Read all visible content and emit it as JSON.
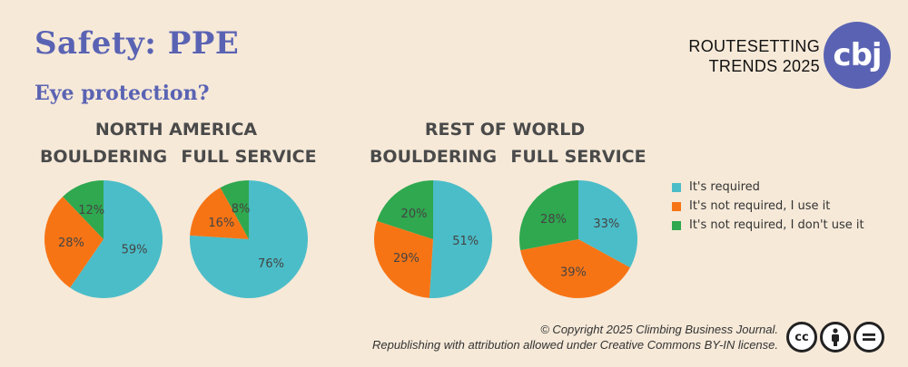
{
  "title": "Safety: PPE",
  "subtitle": "Eye protection?",
  "brand": {
    "line1": "ROUTESETTING",
    "line2": "TRENDS 2025",
    "logo_text": "cbj"
  },
  "regions": [
    "NORTH AMERICA",
    "REST OF WORLD"
  ],
  "copyright": {
    "line1": "© Copyright 2025 Climbing Business Journal.",
    "line2": "Republishing with attribution allowed under Creative Commons BY-IN license."
  },
  "license_icons": [
    "creative-commons-icon",
    "attribution-icon",
    "no-derivatives-icon"
  ],
  "chart_data": {
    "type": "pie",
    "labels": [
      "It's required",
      "It's not required, I use it",
      "It's not required, I don't use it"
    ],
    "colors": [
      "#4bbdc8",
      "#f77415",
      "#2fa84f"
    ],
    "legend_position": "right",
    "charts": [
      {
        "region": "NORTH AMERICA",
        "title": "BOULDERING",
        "values": [
          59,
          28,
          12
        ]
      },
      {
        "region": "NORTH AMERICA",
        "title": "FULL SERVICE",
        "values": [
          76,
          16,
          8
        ]
      },
      {
        "region": "REST OF WORLD",
        "title": "BOULDERING",
        "values": [
          51,
          29,
          20
        ]
      },
      {
        "region": "REST OF WORLD",
        "title": "FULL SERVICE",
        "values": [
          33,
          39,
          28
        ]
      }
    ]
  }
}
